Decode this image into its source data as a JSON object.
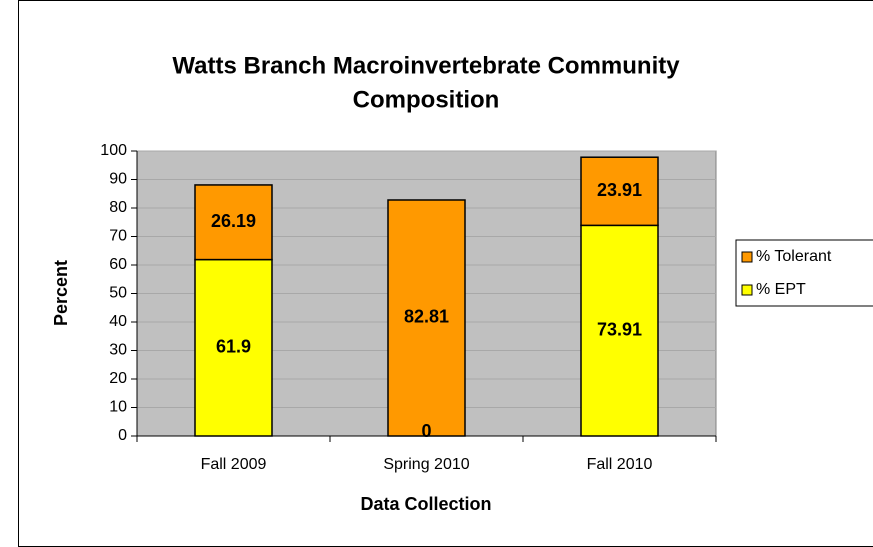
{
  "chart_data": {
    "type": "stacked_bar",
    "title": [
      "Watts Branch Macroinvertebrate Community",
      "Composition"
    ],
    "x_label": "Data Collection",
    "y_label": "Percent",
    "categories": [
      "Fall 2009",
      "Spring 2010",
      "Fall 2010"
    ],
    "series": [
      {
        "name": "% EPT",
        "color": "#ffff00",
        "values": [
          61.9,
          0,
          73.91
        ]
      },
      {
        "name": "% Tolerant",
        "color": "#ff9900",
        "values": [
          26.19,
          82.81,
          23.91
        ]
      }
    ],
    "ylim": [
      0,
      100
    ],
    "yticks": [
      0,
      10,
      20,
      30,
      40,
      50,
      60,
      70,
      80,
      90,
      100
    ],
    "grid": true,
    "legend": "right"
  }
}
